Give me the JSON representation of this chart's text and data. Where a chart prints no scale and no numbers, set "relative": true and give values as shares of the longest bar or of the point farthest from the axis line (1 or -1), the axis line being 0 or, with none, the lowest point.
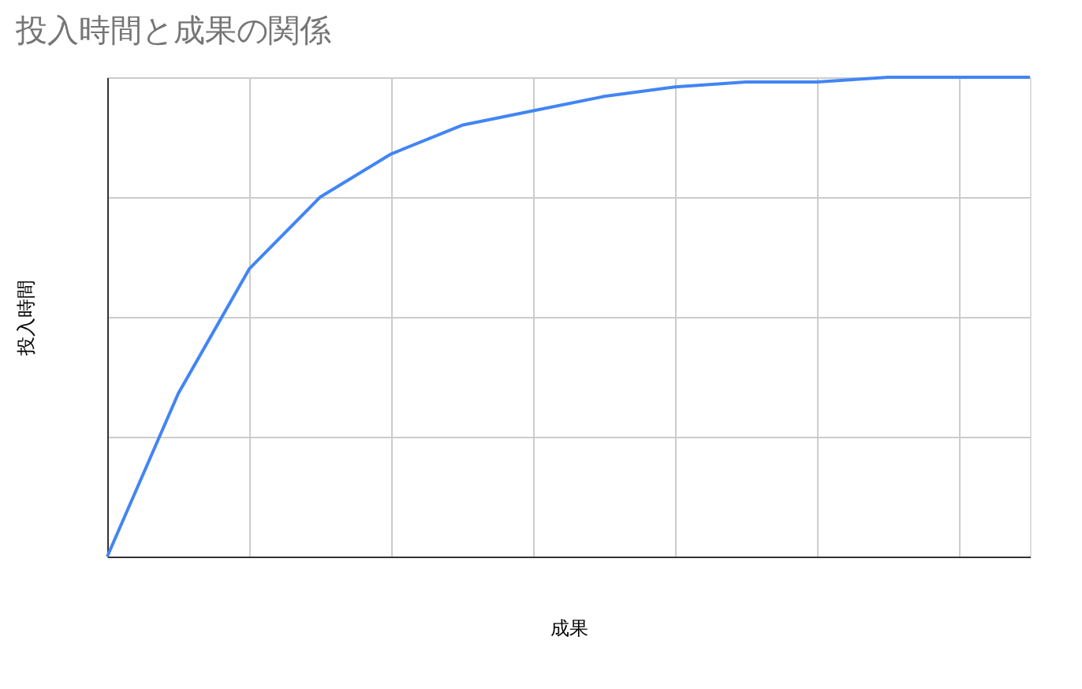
{
  "chart_data": {
    "type": "line",
    "title": "投入時間と成果の関係",
    "xlabel": "成果",
    "ylabel": "投入時間",
    "relative": true,
    "categories": [
      null,
      null,
      null,
      null,
      null,
      null,
      null,
      null,
      null,
      null,
      null,
      null,
      null,
      null
    ],
    "series": [
      {
        "color": "#4285f4",
        "values": [
          0,
          0.34,
          0.6,
          0.75,
          0.84,
          0.9,
          0.93,
          0.96,
          0.98,
          0.99,
          0.99,
          1,
          1,
          1
        ]
      }
    ],
    "grid": true,
    "tick_labels": false,
    "marker": "none",
    "line_style": "solid"
  }
}
